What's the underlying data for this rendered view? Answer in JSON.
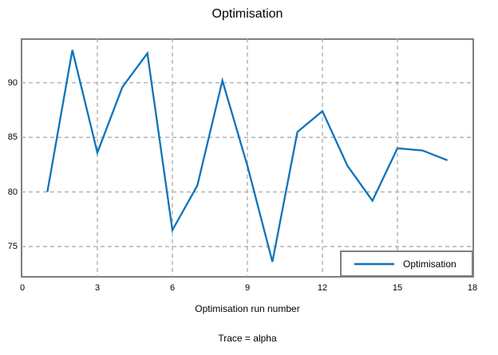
{
  "chart_data": {
    "type": "line",
    "title": "Optimisation",
    "xlabel": "Optimisation run number",
    "ylabel": "",
    "footnote": "Trace = alpha",
    "x": [
      1,
      2,
      3,
      4,
      5,
      6,
      7,
      8,
      9,
      10,
      11,
      12,
      13,
      14,
      15,
      16,
      17
    ],
    "series": [
      {
        "name": "Optimisation",
        "values": [
          80.0,
          93.0,
          83.6,
          89.6,
          92.7,
          76.5,
          80.6,
          90.2,
          82.4,
          73.6,
          85.5,
          87.4,
          82.4,
          79.2,
          84.0,
          83.8,
          82.9
        ]
      }
    ],
    "xlim": [
      0,
      18
    ],
    "ylim": [
      72.3,
      94.0
    ],
    "xticks": [
      0,
      3,
      6,
      9,
      12,
      15,
      18
    ],
    "yticks": [
      75,
      80,
      85,
      90
    ],
    "grid": {
      "x_values": [
        3,
        6,
        9,
        12,
        15
      ],
      "y_values": [
        75,
        80,
        85,
        90
      ],
      "style": "dashed",
      "on": true
    },
    "legend": {
      "position": "bottom-right",
      "entries": [
        "Optimisation"
      ]
    },
    "colors": {
      "line": "#0d73bb",
      "grid": "#ababab",
      "frame": "#7f7f7f",
      "text": "#000000",
      "background": "#ffffff"
    }
  }
}
